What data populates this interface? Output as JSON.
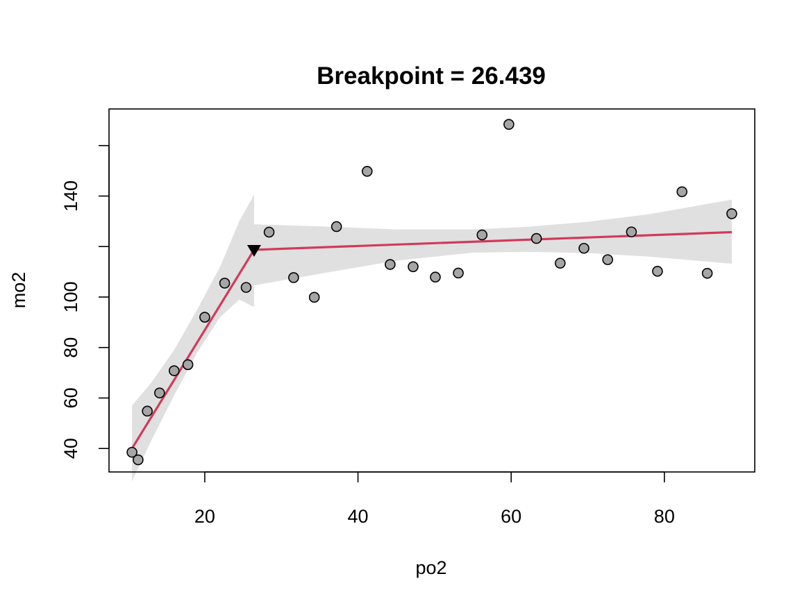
{
  "chart_data": {
    "type": "scatter",
    "title": "Breakpoint = 26.439",
    "xlabel": "po2",
    "ylabel": "mo2",
    "xlim": [
      7.5,
      91.8
    ],
    "ylim": [
      30.7,
      174.5
    ],
    "x_ticks": [
      20,
      40,
      60,
      80
    ],
    "y_ticks": [
      40,
      60,
      80,
      100,
      120,
      140,
      160
    ],
    "y_tick_labels": [
      "40",
      "60",
      "80",
      "100",
      "",
      "140",
      ""
    ],
    "grid": false,
    "legend": "none",
    "points": [
      {
        "x": 10.5,
        "y": 38.5
      },
      {
        "x": 11.3,
        "y": 35.5
      },
      {
        "x": 12.5,
        "y": 54.8
      },
      {
        "x": 14.1,
        "y": 62.0
      },
      {
        "x": 16.0,
        "y": 70.8
      },
      {
        "x": 17.8,
        "y": 73.2
      },
      {
        "x": 20.0,
        "y": 92.0
      },
      {
        "x": 22.6,
        "y": 105.5
      },
      {
        "x": 25.4,
        "y": 103.8
      },
      {
        "x": 28.4,
        "y": 125.7
      },
      {
        "x": 31.6,
        "y": 107.7
      },
      {
        "x": 34.3,
        "y": 99.9
      },
      {
        "x": 37.2,
        "y": 127.9
      },
      {
        "x": 41.2,
        "y": 149.8
      },
      {
        "x": 44.2,
        "y": 112.9
      },
      {
        "x": 47.2,
        "y": 112.0
      },
      {
        "x": 50.1,
        "y": 107.9
      },
      {
        "x": 53.1,
        "y": 109.5
      },
      {
        "x": 56.2,
        "y": 124.6
      },
      {
        "x": 59.7,
        "y": 168.4
      },
      {
        "x": 63.3,
        "y": 123.2
      },
      {
        "x": 66.4,
        "y": 113.4
      },
      {
        "x": 69.5,
        "y": 119.3
      },
      {
        "x": 72.6,
        "y": 114.8
      },
      {
        "x": 75.7,
        "y": 125.8
      },
      {
        "x": 79.1,
        "y": 110.2
      },
      {
        "x": 82.3,
        "y": 141.7
      },
      {
        "x": 85.6,
        "y": 109.4
      },
      {
        "x": 88.8,
        "y": 133.0
      }
    ],
    "fit_line": [
      {
        "x": 10.5,
        "y": 40.0
      },
      {
        "x": 26.439,
        "y": 118.7
      },
      {
        "x": 88.8,
        "y": 125.7
      }
    ],
    "breakpoint": {
      "x": 26.439,
      "y": 118.7
    },
    "confidence_band": {
      "segment1_x": [
        10.5,
        13.0,
        16.0,
        19.0,
        22.0,
        24.5,
        26.439
      ],
      "segment1_upper": [
        57.0,
        66.0,
        79.0,
        95.0,
        112.0,
        130.0,
        140.5
      ],
      "segment1_lower": [
        27.0,
        43.0,
        61.0,
        78.0,
        92.0,
        99.0,
        96.0
      ],
      "segment2_x": [
        26.439,
        35,
        45,
        55,
        62,
        70,
        78,
        88.8
      ],
      "segment2_upper": [
        128.8,
        128.0,
        126.8,
        126.8,
        127.8,
        129.8,
        132.8,
        138.6
      ],
      "segment2_lower": [
        104.6,
        109.2,
        114.4,
        117.6,
        117.9,
        117.4,
        116.0,
        113.2
      ]
    },
    "colors": {
      "fit_line": "#d13a5a",
      "point_fill": "#a6a6a6",
      "point_stroke": "#000000",
      "band": "#e0e0e0",
      "breakpoint_marker": "#000000"
    }
  }
}
